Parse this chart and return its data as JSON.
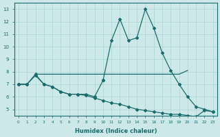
{
  "xlabel": "Humidex (Indice chaleur)",
  "background_color": "#cce8e8",
  "grid_color": "#aad4d4",
  "line_color": "#1a6b6b",
  "x_all": [
    0,
    1,
    2,
    3,
    4,
    5,
    6,
    7,
    8,
    9,
    10,
    11,
    12,
    13,
    14,
    15,
    16,
    17,
    18,
    19,
    20,
    21,
    22,
    23
  ],
  "line_peak": [
    7.0,
    7.0,
    null,
    null,
    null,
    null,
    null,
    null,
    null,
    null,
    7.3,
    10.5,
    12.2,
    10.5,
    10.7,
    13.0,
    11.5,
    9.5,
    8.1,
    7.0,
    6.0,
    5.2,
    5.0,
    4.8
  ],
  "line_flat": [
    null,
    null,
    7.8,
    7.8,
    7.8,
    7.8,
    7.8,
    7.8,
    7.8,
    7.8,
    7.8,
    7.8,
    7.8,
    7.8,
    7.8,
    7.8,
    7.8,
    7.8,
    7.8,
    7.8,
    8.1,
    null,
    null,
    null
  ],
  "line_short": [
    7.0,
    7.0,
    7.8,
    7.0,
    6.8,
    6.4,
    6.2,
    6.2,
    6.2,
    6.0,
    7.3,
    null,
    null,
    null,
    null,
    null,
    null,
    null,
    null,
    null,
    null,
    null,
    null,
    null
  ],
  "line_long": [
    7.0,
    7.0,
    7.7,
    7.0,
    6.8,
    6.4,
    6.2,
    6.2,
    6.1,
    5.9,
    5.7,
    5.5,
    5.4,
    5.2,
    5.0,
    4.9,
    4.8,
    4.7,
    4.6,
    4.6,
    4.5,
    4.4,
    4.9,
    4.8
  ],
  "xlim": [
    -0.5,
    23.5
  ],
  "ylim": [
    4.5,
    13.5
  ],
  "yticks": [
    5,
    6,
    7,
    8,
    9,
    10,
    11,
    12,
    13
  ]
}
